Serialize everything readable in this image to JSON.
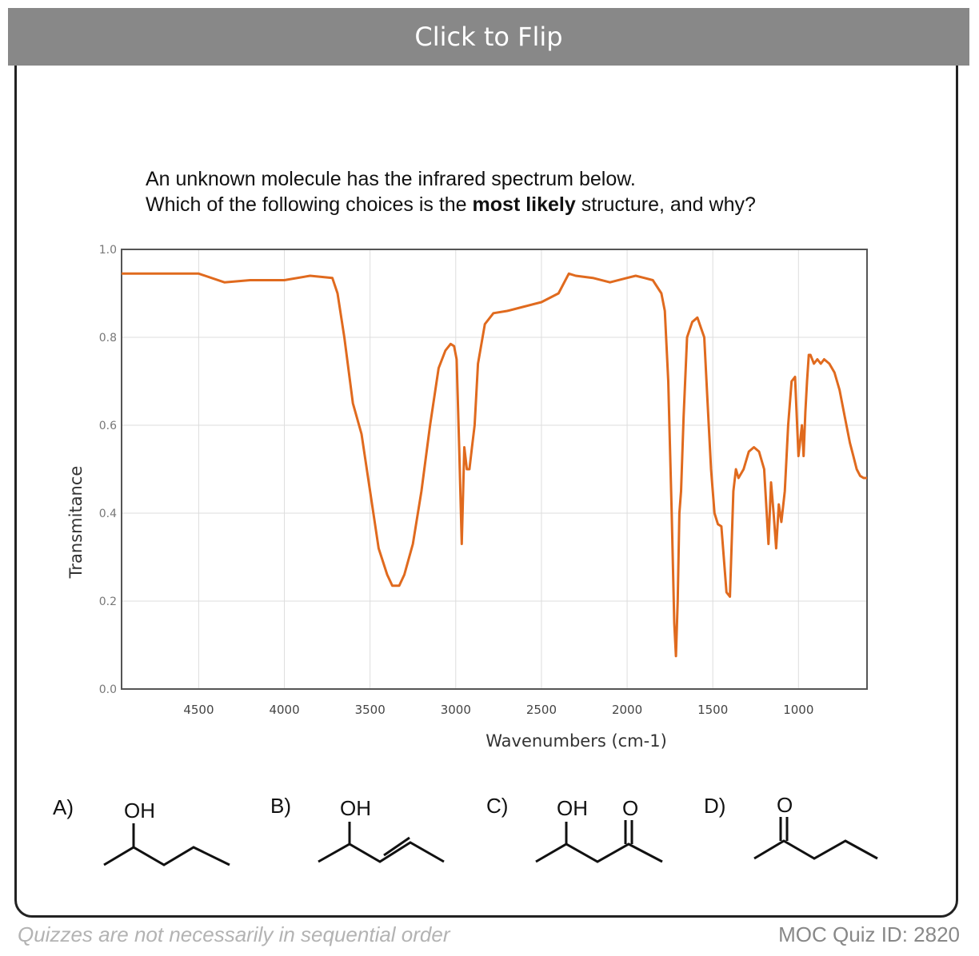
{
  "flip_button": {
    "label": "Click to Flip"
  },
  "question": {
    "line1": "An unknown molecule has the infrared spectrum below.",
    "line2_pre": "Which of the following choices is the ",
    "line2_bold": "most likely",
    "line2_post": " structure, and why?"
  },
  "chart_data": {
    "type": "line",
    "xlabel": "Wavenumbers (cm-1)",
    "ylabel": "Transmitance",
    "xlim": [
      4950,
      600
    ],
    "ylim": [
      0,
      1.0
    ],
    "x_ticks": [
      4500,
      4000,
      3500,
      3000,
      2500,
      2000,
      1500,
      1000
    ],
    "y_ticks": [
      0.0,
      0.2,
      0.4,
      0.6,
      0.8,
      1.0
    ],
    "y_tick_labels": [
      "0.0",
      "0.2",
      "0.4",
      "0.6",
      "0.8",
      "1.0"
    ],
    "grid": true,
    "line_color": "#e06a1e",
    "series": [
      {
        "x": [
          4950,
          4750,
          4500,
          4350,
          4200,
          4000,
          3850,
          3720,
          3690,
          3650,
          3600,
          3550,
          3500,
          3450,
          3400,
          3370,
          3330,
          3300,
          3250,
          3200,
          3150,
          3100,
          3060,
          3030,
          3010,
          2995,
          2980,
          2965,
          2950,
          2935,
          2920,
          2905,
          2890,
          2870,
          2830,
          2780,
          2700,
          2600,
          2500,
          2400,
          2340,
          2300,
          2200,
          2100,
          2000,
          1950,
          1900,
          1850,
          1800,
          1780,
          1760,
          1740,
          1725,
          1715,
          1705,
          1695,
          1685,
          1670,
          1650,
          1620,
          1590,
          1550,
          1530,
          1510,
          1490,
          1470,
          1450,
          1420,
          1400,
          1380,
          1365,
          1350,
          1320,
          1290,
          1260,
          1230,
          1200,
          1175,
          1160,
          1145,
          1130,
          1115,
          1100,
          1080,
          1060,
          1040,
          1020,
          1000,
          980,
          970,
          960,
          950,
          940,
          930,
          910,
          890,
          870,
          850,
          820,
          790,
          760,
          730,
          700,
          680,
          660,
          640,
          620,
          600
        ],
        "y": [
          0.945,
          0.945,
          0.945,
          0.925,
          0.93,
          0.93,
          0.94,
          0.935,
          0.9,
          0.8,
          0.65,
          0.58,
          0.45,
          0.32,
          0.26,
          0.235,
          0.235,
          0.26,
          0.33,
          0.45,
          0.6,
          0.73,
          0.77,
          0.785,
          0.78,
          0.75,
          0.55,
          0.33,
          0.55,
          0.5,
          0.5,
          0.55,
          0.6,
          0.74,
          0.83,
          0.855,
          0.86,
          0.87,
          0.88,
          0.9,
          0.945,
          0.94,
          0.935,
          0.925,
          0.935,
          0.94,
          0.935,
          0.93,
          0.9,
          0.86,
          0.7,
          0.4,
          0.15,
          0.075,
          0.2,
          0.4,
          0.45,
          0.62,
          0.8,
          0.835,
          0.845,
          0.8,
          0.65,
          0.5,
          0.4,
          0.375,
          0.37,
          0.22,
          0.21,
          0.45,
          0.5,
          0.48,
          0.5,
          0.54,
          0.55,
          0.54,
          0.5,
          0.33,
          0.47,
          0.4,
          0.32,
          0.42,
          0.38,
          0.45,
          0.6,
          0.7,
          0.71,
          0.53,
          0.6,
          0.53,
          0.63,
          0.7,
          0.76,
          0.76,
          0.74,
          0.75,
          0.74,
          0.75,
          0.74,
          0.72,
          0.68,
          0.62,
          0.56,
          0.53,
          0.5,
          0.485,
          0.48,
          0.48
        ]
      }
    ]
  },
  "choices": [
    {
      "label": "A)",
      "oh": "OH",
      "o": ""
    },
    {
      "label": "B)",
      "oh": "OH",
      "o": ""
    },
    {
      "label": "C)",
      "oh": "OH",
      "o": "O"
    },
    {
      "label": "D)",
      "oh": "",
      "o": "O"
    }
  ],
  "footer": {
    "left": "Quizzes are not necessarily in sequential order",
    "right": "MOC Quiz ID: 2820"
  }
}
